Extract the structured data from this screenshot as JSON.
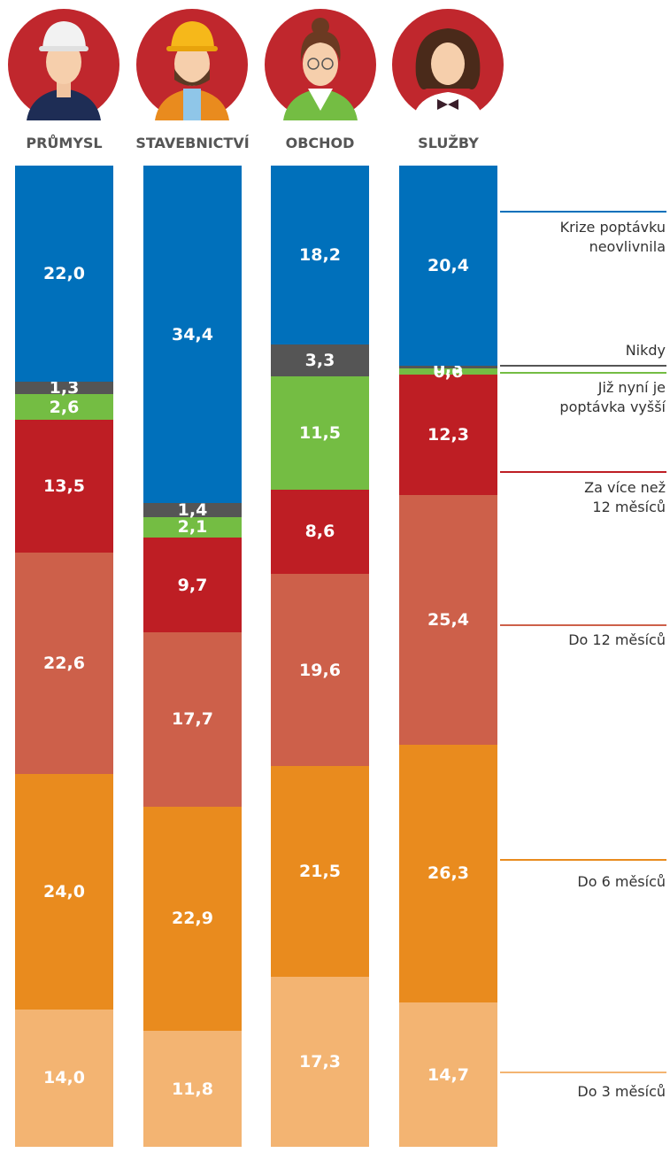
{
  "chart_data": {
    "type": "stacked_bar",
    "categories": [
      "PRŮMYSL",
      "STAVEBNICTVÍ",
      "OBCHOD",
      "SLUŽBY"
    ],
    "ylim": [
      0,
      100
    ],
    "series": [
      {
        "name": "Do 3 měsíců",
        "color": "#f3b472",
        "values": [
          14.0,
          11.8,
          17.3,
          14.7
        ],
        "value_labels": [
          "14,0",
          "11,8",
          "17,3",
          "14,7"
        ]
      },
      {
        "name": "Do 6 měsíců",
        "color": "#e98b1e",
        "values": [
          24.0,
          22.9,
          21.5,
          26.3
        ],
        "value_labels": [
          "24,0",
          "22,9",
          "21,5",
          "26,3"
        ]
      },
      {
        "name": "Do 12 měsíců",
        "color": "#cd604a",
        "values": [
          22.6,
          17.7,
          19.6,
          25.4
        ],
        "value_labels": [
          "22,6",
          "17,7",
          "19,6",
          "25,4"
        ]
      },
      {
        "name": "Za více než\n12 měsíců",
        "color": "#be1e24",
        "values": [
          13.5,
          9.7,
          8.6,
          12.3
        ],
        "value_labels": [
          "13,5",
          "9,7",
          "8,6",
          "12,3"
        ]
      },
      {
        "name": "Již nyní je\npoptávka vyšší",
        "color": "#74bd43",
        "values": [
          2.6,
          2.1,
          11.5,
          0.6
        ],
        "value_labels": [
          "2,6",
          "2,1",
          "11,5",
          "0,6"
        ]
      },
      {
        "name": "Nikdy",
        "color": "#555555",
        "values": [
          1.3,
          1.4,
          3.3,
          0.3
        ],
        "value_labels": [
          "1,3",
          "1,4",
          "3,3",
          "0,3"
        ]
      },
      {
        "name": "Krize poptávku\nneovlivnila",
        "color": "#0070bb",
        "values": [
          22.0,
          34.4,
          18.2,
          20.4
        ],
        "value_labels": [
          "22,0",
          "34,4",
          "18,2",
          "20,4"
        ]
      }
    ]
  }
}
